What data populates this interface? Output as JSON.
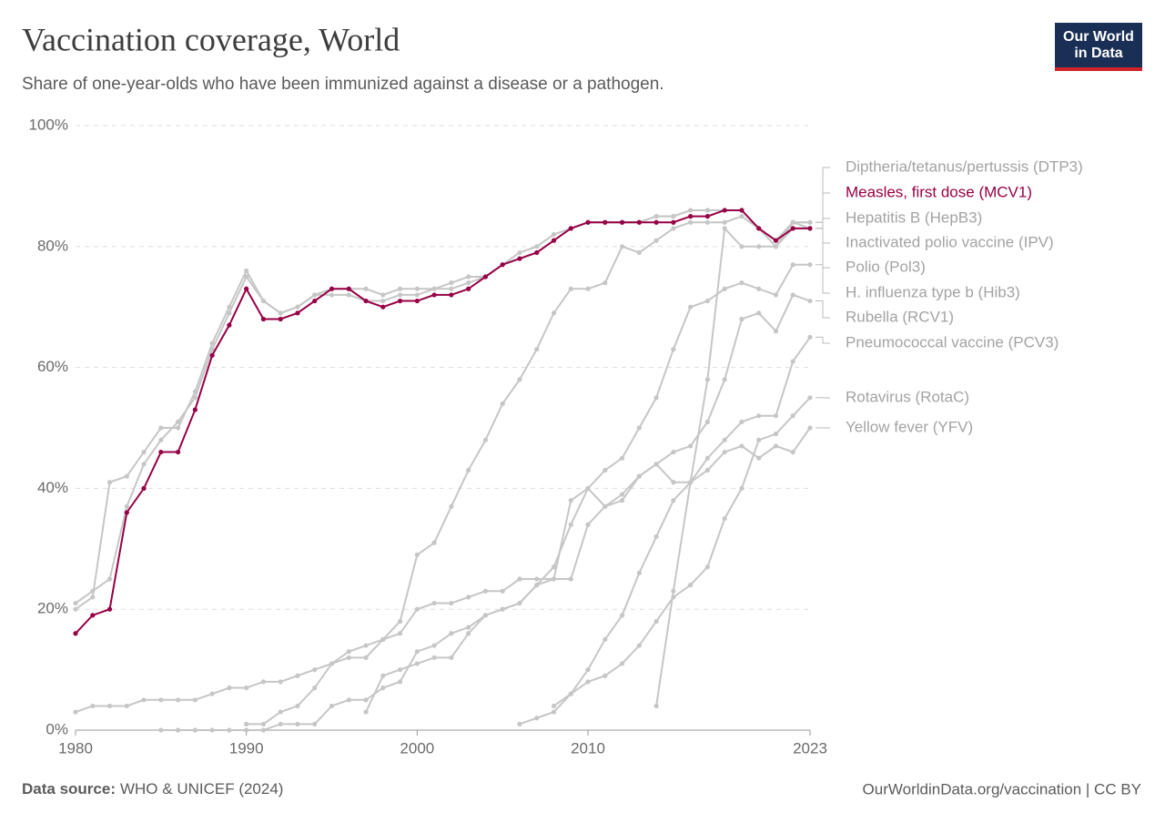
{
  "chart_data": {
    "type": "line",
    "title": "Vaccination coverage, World",
    "subtitle": "Share of one-year-olds who have been immunized against a disease or a pathogen.",
    "logo": [
      "Our World",
      "in Data"
    ],
    "source_label": "Data source:",
    "source": "WHO & UNICEF (2024)",
    "credit": "OurWorldinData.org/vaccination | CC BY",
    "x": [
      1980,
      1981,
      1982,
      1983,
      1984,
      1985,
      1986,
      1987,
      1988,
      1989,
      1990,
      1991,
      1992,
      1993,
      1994,
      1995,
      1996,
      1997,
      1998,
      1999,
      2000,
      2001,
      2002,
      2003,
      2004,
      2005,
      2006,
      2007,
      2008,
      2009,
      2010,
      2011,
      2012,
      2013,
      2014,
      2015,
      2016,
      2017,
      2018,
      2019,
      2020,
      2021,
      2022,
      2023
    ],
    "xlim": [
      1980,
      2023
    ],
    "xticks": [
      1980,
      1990,
      2000,
      2010,
      2023
    ],
    "ylim": [
      0,
      100
    ],
    "yticks": [
      {
        "value": 0,
        "label": "0%"
      },
      {
        "value": 20,
        "label": "20%"
      },
      {
        "value": 40,
        "label": "40%"
      },
      {
        "value": 60,
        "label": "60%"
      },
      {
        "value": 80,
        "label": "80%"
      },
      {
        "value": 100,
        "label": "100%"
      }
    ],
    "grid": true,
    "series": [
      {
        "name": "Diptheria/tetanus/pertussis (DTP3)",
        "color": "#c6c6c6",
        "values": [
          20,
          22,
          41,
          42,
          46,
          50,
          50,
          56,
          64,
          70,
          76,
          71,
          69,
          70,
          72,
          73,
          73,
          73,
          72,
          73,
          73,
          73,
          74,
          75,
          75,
          77,
          79,
          80,
          82,
          83,
          84,
          84,
          84,
          84,
          85,
          85,
          86,
          86,
          86,
          86,
          83,
          81,
          84,
          84
        ]
      },
      {
        "name": "Measles, first dose (MCV1)",
        "color": "#970046",
        "values": [
          16,
          19,
          20,
          36,
          40,
          46,
          46,
          53,
          62,
          67,
          73,
          68,
          68,
          69,
          71,
          73,
          73,
          71,
          70,
          71,
          71,
          72,
          72,
          73,
          75,
          77,
          78,
          79,
          81,
          83,
          84,
          84,
          84,
          84,
          84,
          84,
          85,
          85,
          86,
          86,
          83,
          81,
          83,
          83
        ]
      },
      {
        "name": "Hepatitis B (HepB3)",
        "color": "#c6c6c6",
        "values": [
          null,
          null,
          null,
          null,
          null,
          null,
          null,
          null,
          null,
          null,
          1,
          1,
          3,
          4,
          7,
          11,
          13,
          14,
          15,
          18,
          29,
          31,
          37,
          43,
          48,
          54,
          58,
          63,
          69,
          73,
          73,
          74,
          80,
          79,
          81,
          83,
          84,
          84,
          84,
          85,
          83,
          80,
          83,
          83
        ]
      },
      {
        "name": "Inactivated polio vaccine (IPV)",
        "color": "#c6c6c6",
        "values": [
          null,
          null,
          null,
          null,
          null,
          null,
          null,
          null,
          null,
          null,
          null,
          null,
          null,
          null,
          null,
          null,
          null,
          null,
          null,
          null,
          null,
          null,
          null,
          null,
          null,
          null,
          null,
          null,
          null,
          null,
          null,
          null,
          null,
          null,
          4,
          23,
          41,
          58,
          83,
          80,
          80,
          80,
          84,
          83
        ]
      },
      {
        "name": "Polio (Pol3)",
        "color": "#c6c6c6",
        "values": [
          21,
          23,
          25,
          37,
          44,
          48,
          51,
          55,
          63,
          69,
          75,
          71,
          69,
          70,
          72,
          72,
          72,
          71,
          71,
          72,
          72,
          73,
          73,
          74,
          75,
          77,
          78,
          79,
          81,
          83,
          84,
          84,
          84,
          84,
          85,
          85,
          86,
          86,
          86,
          86,
          83,
          81,
          84,
          84
        ]
      },
      {
        "name": "H. influenza type b (Hib3)",
        "color": "#c6c6c6",
        "values": [
          null,
          null,
          null,
          null,
          null,
          0,
          0,
          0,
          0,
          0,
          0,
          0,
          1,
          1,
          1,
          4,
          5,
          5,
          7,
          8,
          13,
          14,
          16,
          17,
          19,
          20,
          21,
          24,
          27,
          34,
          40,
          43,
          45,
          50,
          55,
          63,
          70,
          71,
          73,
          74,
          73,
          72,
          77,
          77
        ]
      },
      {
        "name": "Rubella (RCV1)",
        "color": "#c6c6c6",
        "values": [
          3,
          4,
          4,
          4,
          5,
          5,
          5,
          5,
          6,
          7,
          7,
          8,
          8,
          9,
          10,
          11,
          12,
          12,
          15,
          16,
          20,
          21,
          21,
          22,
          23,
          23,
          25,
          25,
          25,
          25,
          34,
          37,
          39,
          42,
          44,
          46,
          47,
          51,
          58,
          68,
          69,
          66,
          72,
          71
        ]
      },
      {
        "name": "Pneumococcal vaccine (PCV3)",
        "color": "#c6c6c6",
        "values": [
          null,
          null,
          null,
          null,
          null,
          null,
          null,
          null,
          null,
          null,
          null,
          null,
          null,
          null,
          null,
          null,
          null,
          null,
          null,
          null,
          null,
          null,
          null,
          null,
          null,
          null,
          1,
          2,
          3,
          6,
          10,
          15,
          19,
          26,
          32,
          38,
          41,
          45,
          48,
          51,
          52,
          52,
          61,
          65
        ]
      },
      {
        "name": "Rotavirus (RotaC)",
        "color": "#c6c6c6",
        "values": [
          null,
          null,
          null,
          null,
          null,
          null,
          null,
          null,
          null,
          null,
          null,
          null,
          null,
          null,
          null,
          null,
          null,
          null,
          null,
          null,
          null,
          null,
          null,
          null,
          null,
          null,
          null,
          null,
          4,
          6,
          8,
          9,
          11,
          14,
          18,
          22,
          24,
          27,
          35,
          40,
          48,
          49,
          52,
          55
        ]
      },
      {
        "name": "Yellow fever (YFV)",
        "color": "#c6c6c6",
        "values": [
          null,
          null,
          null,
          null,
          null,
          null,
          null,
          null,
          null,
          null,
          null,
          null,
          null,
          null,
          null,
          null,
          null,
          3,
          9,
          10,
          11,
          12,
          12,
          16,
          19,
          20,
          21,
          24,
          25,
          38,
          40,
          37,
          38,
          42,
          44,
          41,
          41,
          43,
          46,
          47,
          45,
          47,
          46,
          50
        ]
      }
    ]
  }
}
